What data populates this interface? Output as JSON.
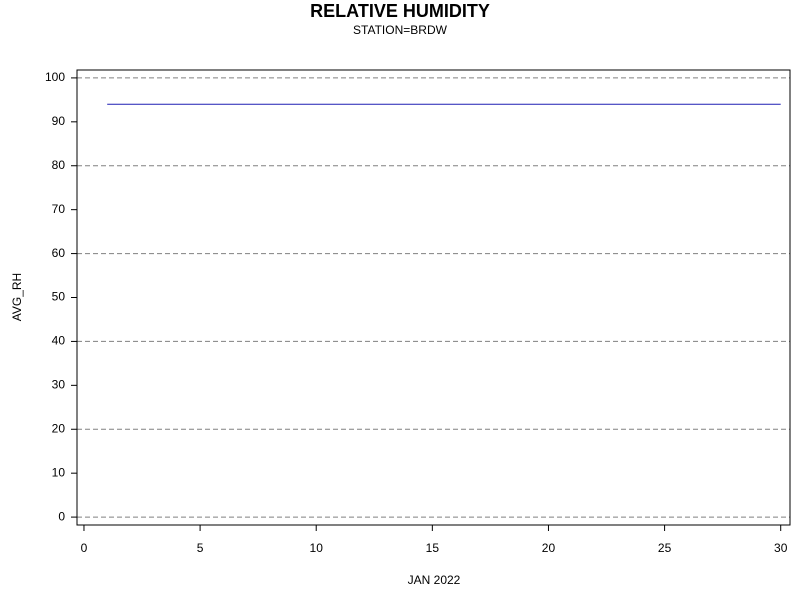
{
  "chart_data": {
    "type": "line",
    "title": "RELATIVE HUMIDITY",
    "subtitle": "STATION=BRDW",
    "x_label": "JAN 2022",
    "y_label": "AVG_RH",
    "x": [
      1,
      2,
      3,
      4,
      5,
      6,
      7,
      8,
      9,
      10,
      11,
      12,
      13,
      14,
      15,
      16,
      17,
      18,
      19,
      20,
      21,
      22,
      23,
      24,
      25,
      26,
      27,
      28,
      29,
      30
    ],
    "values": [
      94,
      94,
      94,
      94,
      94,
      94,
      94,
      94,
      94,
      94,
      94,
      94,
      94,
      94,
      94,
      94,
      94,
      94,
      94,
      94,
      94,
      94,
      94,
      94,
      94,
      94,
      94,
      94,
      94,
      94
    ],
    "color": "#1f1fb4",
    "xlim": [
      -0.3,
      30.4
    ],
    "xticks": [
      0,
      5,
      10,
      15,
      20,
      25,
      30
    ],
    "ylim": [
      -1.8,
      101.8
    ],
    "yticks": [
      0,
      10,
      20,
      30,
      40,
      50,
      60,
      70,
      80,
      90,
      100
    ],
    "ygrid": [
      0,
      20,
      40,
      60,
      80,
      100
    ]
  }
}
